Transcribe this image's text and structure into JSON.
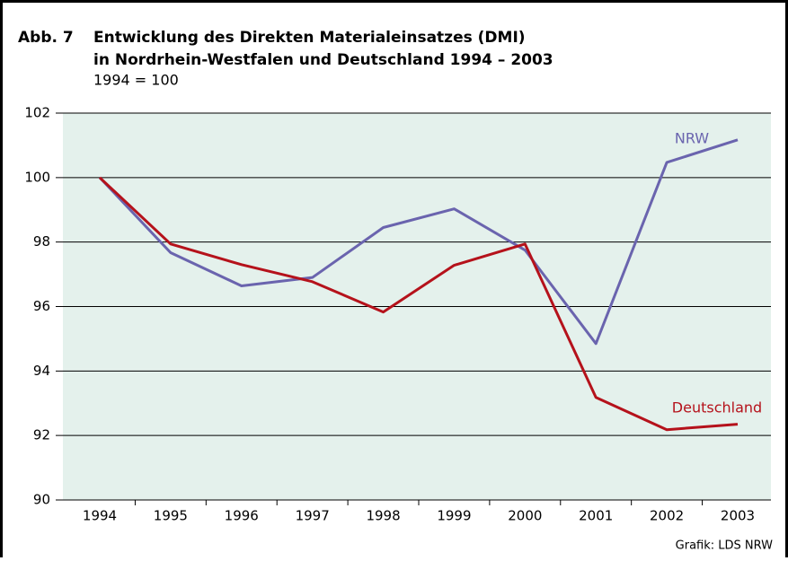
{
  "chart_data": {
    "type": "line",
    "figure_label": "Abb. 7",
    "title": [
      "Entwicklung des Direkten Materialeinsatzes (DMI)",
      "in Nordrhein-Westfalen und Deutschland 1994 – 2003"
    ],
    "subtitle": "1994 = 100",
    "source": "Grafik: LDS NRW",
    "categories": [
      "1994",
      "1995",
      "1996",
      "1997",
      "1998",
      "1999",
      "2000",
      "2001",
      "2002",
      "2003"
    ],
    "series": [
      {
        "name": "NRW",
        "color": "#6a64ae",
        "values": [
          100,
          97.67,
          96.64,
          96.9,
          98.45,
          99.03,
          97.75,
          94.85,
          100.47,
          101.17
        ]
      },
      {
        "name": "Deutschland",
        "color": "#b5121b",
        "values": [
          100,
          97.94,
          97.3,
          96.77,
          95.83,
          97.28,
          97.94,
          93.18,
          92.18,
          92.35
        ]
      }
    ],
    "ylim": [
      90,
      102
    ],
    "yticks": [
      90,
      92,
      94,
      96,
      98,
      100,
      102
    ],
    "grid": true,
    "plot_background": "#e4f1ec"
  }
}
